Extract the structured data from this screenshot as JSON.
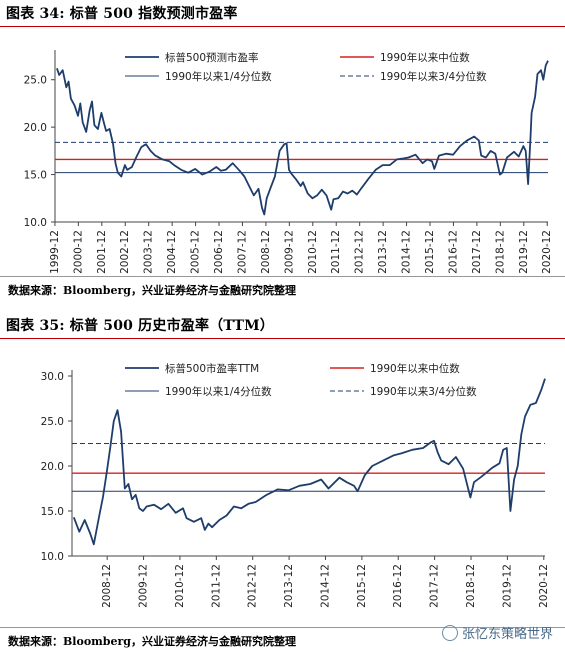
{
  "figures": [
    {
      "header": "图表 34:  标普 500 指数预测市盈率",
      "source": "数据来源：Bloomberg，兴业证券经济与金融研究院整理"
    },
    {
      "header": "图表 35:  标普 500 历史市盈率（TTM）",
      "source": "数据来源：Bloomberg，兴业证券经济与金融研究院整理"
    }
  ],
  "watermark": "张忆东策略世界",
  "colors": {
    "series": "#1f3d6b",
    "median": "#d62020",
    "quartile": "#1f3d6b",
    "header_rule": "#c00000"
  },
  "chart_data": [
    {
      "type": "line",
      "ylim": [
        10,
        27.5
      ],
      "yticks": [
        "10.0",
        "15.0",
        "20.0",
        "25.0"
      ],
      "ytick_values": [
        10,
        15,
        20,
        25
      ],
      "xlim": [
        1999.92,
        2020.95
      ],
      "xticks": [
        "1999-12",
        "2000-12",
        "2001-12",
        "2002-12",
        "2003-12",
        "2004-12",
        "2005-12",
        "2006-12",
        "2007-12",
        "2008-12",
        "2009-12",
        "2010-12",
        "2011-12",
        "2012-12",
        "2013-12",
        "2014-12",
        "2015-12",
        "2016-12",
        "2017-12",
        "2018-12",
        "2019-12",
        "2020-12"
      ],
      "legend_position": "top",
      "series": [
        {
          "name": "标普500预测市盈率",
          "x": [
            2000.0,
            2000.1,
            2000.25,
            2000.4,
            2000.5,
            2000.6,
            2000.75,
            2000.9,
            2001.0,
            2001.1,
            2001.25,
            2001.4,
            2001.5,
            2001.6,
            2001.75,
            2001.9,
            2002.0,
            2002.1,
            2002.25,
            2002.4,
            2002.5,
            2002.6,
            2002.75,
            2002.9,
            2003.0,
            2003.2,
            2003.4,
            2003.6,
            2003.8,
            2004.0,
            2004.2,
            2004.5,
            2004.8,
            2005.0,
            2005.3,
            2005.6,
            2005.9,
            2006.2,
            2006.5,
            2006.8,
            2007.0,
            2007.2,
            2007.5,
            2007.8,
            2008.0,
            2008.2,
            2008.4,
            2008.6,
            2008.75,
            2008.85,
            2008.95,
            2009.1,
            2009.3,
            2009.5,
            2009.7,
            2009.8,
            2009.9,
            2010.0,
            2010.2,
            2010.4,
            2010.5,
            2010.7,
            2010.9,
            2011.1,
            2011.3,
            2011.5,
            2011.7,
            2011.8,
            2012.0,
            2012.2,
            2012.4,
            2012.6,
            2012.8,
            2013.0,
            2013.3,
            2013.6,
            2013.9,
            2014.2,
            2014.5,
            2014.8,
            2015.0,
            2015.3,
            2015.6,
            2015.8,
            2016.0,
            2016.1,
            2016.3,
            2016.6,
            2016.9,
            2017.2,
            2017.5,
            2017.8,
            2018.0,
            2018.1,
            2018.3,
            2018.5,
            2018.7,
            2018.9,
            2019.0,
            2019.2,
            2019.5,
            2019.7,
            2019.9,
            2020.0,
            2020.1,
            2020.2,
            2020.25,
            2020.4,
            2020.5,
            2020.65,
            2020.75,
            2020.85,
            2020.95
          ],
          "y": [
            26.2,
            25.5,
            26.0,
            24.2,
            24.8,
            23.0,
            22.3,
            21.2,
            22.5,
            20.5,
            19.5,
            21.8,
            22.7,
            20.2,
            19.8,
            21.5,
            20.5,
            19.6,
            19.8,
            18.2,
            16.2,
            15.2,
            14.8,
            16.0,
            15.5,
            15.8,
            16.9,
            17.9,
            18.2,
            17.5,
            17.0,
            16.6,
            16.4,
            16.0,
            15.5,
            15.2,
            15.6,
            15.0,
            15.3,
            15.8,
            15.4,
            15.5,
            16.2,
            15.4,
            14.8,
            13.8,
            12.8,
            13.5,
            11.5,
            10.8,
            12.5,
            13.5,
            14.8,
            17.5,
            18.2,
            18.3,
            15.5,
            15.1,
            14.5,
            13.8,
            14.2,
            13.0,
            12.5,
            12.8,
            13.4,
            12.8,
            11.3,
            12.4,
            12.5,
            13.2,
            13.0,
            13.3,
            12.9,
            13.6,
            14.6,
            15.5,
            16.0,
            16.0,
            16.6,
            16.7,
            16.8,
            17.1,
            16.2,
            16.6,
            16.4,
            15.6,
            17.0,
            17.2,
            17.1,
            18.0,
            18.6,
            19.0,
            18.6,
            17.0,
            16.8,
            17.5,
            17.2,
            15.0,
            15.2,
            16.8,
            17.4,
            16.9,
            18.0,
            17.5,
            14.0,
            18.7,
            21.5,
            23.2,
            25.6,
            26.0,
            25.0,
            26.5,
            27.0
          ]
        }
      ],
      "reference_lines": [
        {
          "name": "1990年以来中位数",
          "y": 16.6,
          "style": "solid",
          "color": "#d62020"
        },
        {
          "name": "1990年以来1/4分位数",
          "y": 15.2,
          "style": "solid",
          "color": "#1f3d6b"
        },
        {
          "name": "1990年以来3/4分位数",
          "y": 18.4,
          "style": "dashed",
          "color": "#1f3d6b"
        }
      ]
    },
    {
      "type": "line",
      "ylim": [
        10,
        30
      ],
      "yticks": [
        "10.0",
        "15.0",
        "20.0",
        "25.0",
        "30.0"
      ],
      "ytick_values": [
        10,
        15,
        20,
        25,
        30
      ],
      "xlim": [
        2007.95,
        2020.95
      ],
      "xticks": [
        "2008-12",
        "2009-12",
        "2010-12",
        "2011-12",
        "2012-12",
        "2013-12",
        "2014-12",
        "2015-12",
        "2016-12",
        "2017-12",
        "2018-12",
        "2019-12",
        "2020-12"
      ],
      "legend_position": "top",
      "series": [
        {
          "name": "标普500市盈率TTM",
          "x": [
            2008.0,
            2008.15,
            2008.3,
            2008.45,
            2008.55,
            2008.7,
            2008.8,
            2008.9,
            2009.0,
            2009.1,
            2009.2,
            2009.3,
            2009.4,
            2009.5,
            2009.6,
            2009.7,
            2009.8,
            2009.9,
            2010.0,
            2010.2,
            2010.4,
            2010.6,
            2010.8,
            2011.0,
            2011.1,
            2011.3,
            2011.5,
            2011.6,
            2011.7,
            2011.8,
            2012.0,
            2012.2,
            2012.4,
            2012.6,
            2012.8,
            2013.0,
            2013.3,
            2013.6,
            2013.9,
            2014.2,
            2014.5,
            2014.8,
            2015.0,
            2015.3,
            2015.5,
            2015.7,
            2015.8,
            2016.0,
            2016.2,
            2016.5,
            2016.8,
            2017.0,
            2017.3,
            2017.6,
            2017.8,
            2017.9,
            2018.0,
            2018.1,
            2018.3,
            2018.5,
            2018.7,
            2018.9,
            2019.0,
            2019.2,
            2019.5,
            2019.7,
            2019.8,
            2019.9,
            2020.0,
            2020.1,
            2020.2,
            2020.3,
            2020.4,
            2020.55,
            2020.7,
            2020.85,
            2020.95
          ],
          "y": [
            14.3,
            12.7,
            14.0,
            12.5,
            11.3,
            14.5,
            16.5,
            19.2,
            22.0,
            25.0,
            26.2,
            23.8,
            17.5,
            18.0,
            16.3,
            16.8,
            15.3,
            15.0,
            15.5,
            15.7,
            15.2,
            15.8,
            14.8,
            15.3,
            14.2,
            13.8,
            14.2,
            12.9,
            13.6,
            13.2,
            14.0,
            14.5,
            15.5,
            15.3,
            15.8,
            16.0,
            16.8,
            17.4,
            17.3,
            17.8,
            18.0,
            18.5,
            17.5,
            18.7,
            18.2,
            17.8,
            17.2,
            19.0,
            20.0,
            20.6,
            21.2,
            21.4,
            21.8,
            22.0,
            22.6,
            22.8,
            21.5,
            20.6,
            20.2,
            21.0,
            19.7,
            16.5,
            18.2,
            18.8,
            19.8,
            20.3,
            21.8,
            22.0,
            15.0,
            18.5,
            20.0,
            23.5,
            25.5,
            26.8,
            27.0,
            28.5,
            29.7
          ]
        }
      ],
      "reference_lines": [
        {
          "name": "1990年以来中位数",
          "y": 19.2,
          "style": "solid",
          "color": "#d62020"
        },
        {
          "name": "1990年以来1/4分位数",
          "y": 17.2,
          "style": "solid",
          "color": "#1f3d6b"
        },
        {
          "name": "1990年以来3/4分位数",
          "y": 22.5,
          "style": "dashed",
          "color": "#1f3d6b"
        }
      ]
    }
  ]
}
